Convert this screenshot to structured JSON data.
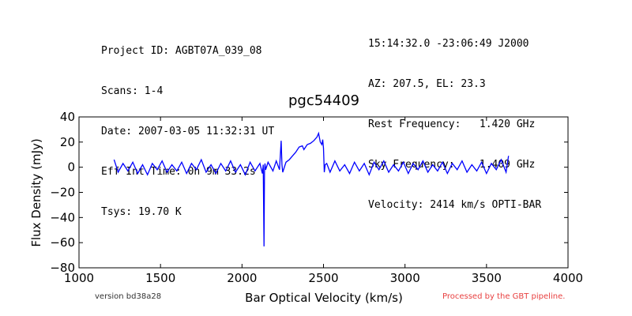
{
  "header_left": [
    "Project ID: AGBT07A_039_08",
    "Scans: 1-4",
    "Date: 2007-03-05 11:32:31 UT",
    "Eff Int Time: 0h 9m 33.2s",
    "Tsys: 19.70 K"
  ],
  "header_right": [
    "15:14:32.0 -23:06:49 J2000",
    "AZ: 207.5, EL: 23.3",
    "Rest Frequency:   1.420 GHz",
    "Sky Frequency:    1.409 GHz",
    "Velocity: 2414 km/s OPTI-BAR"
  ],
  "footer": {
    "version": "version bd38a28",
    "processed": "Processed by the GBT pipeline."
  },
  "colors": {
    "line": "#0000ff",
    "processed_text": "#e84040"
  },
  "chart_data": {
    "type": "line",
    "title": "pgc54409",
    "xlabel": "Bar Optical Velocity (km/s)",
    "ylabel": "Flux Density (mJy)",
    "xlim": [
      1000,
      4000
    ],
    "ylim": [
      -80,
      40
    ],
    "xticks": [
      "1000",
      "1500",
      "2000",
      "2500",
      "3000",
      "3500",
      "4000"
    ],
    "yticks": [
      "40",
      "20",
      "0",
      "−20",
      "−40",
      "−60",
      "−80"
    ],
    "grid": false,
    "series": [
      {
        "x": [
          1215,
          1240,
          1270,
          1300,
          1330,
          1360,
          1390,
          1420,
          1450,
          1480,
          1510,
          1540,
          1570,
          1600,
          1630,
          1660,
          1690,
          1720,
          1750,
          1780,
          1810,
          1840,
          1870,
          1900,
          1930,
          1960,
          1990,
          2020,
          2050,
          2080,
          2110,
          2125,
          2130,
          2135,
          2138,
          2141,
          2145,
          2160,
          2190,
          2210,
          2230,
          2240,
          2245,
          2250,
          2270,
          2290,
          2310,
          2330,
          2350,
          2370,
          2380,
          2400,
          2420,
          2440,
          2460,
          2470,
          2480,
          2490,
          2495,
          2500,
          2505,
          2510,
          2520,
          2540,
          2570,
          2600,
          2630,
          2660,
          2690,
          2720,
          2750,
          2780,
          2810,
          2840,
          2870,
          2900,
          2930,
          2960,
          2990,
          3020,
          3050,
          3080,
          3110,
          3140,
          3170,
          3200,
          3230,
          3260,
          3290,
          3320,
          3350,
          3380,
          3410,
          3440,
          3470,
          3500,
          3530,
          3560,
          3590,
          3620,
          3635
        ],
        "y": [
          6,
          -4,
          3,
          -3,
          4,
          -5,
          2,
          -6,
          3,
          -2,
          5,
          -4,
          2,
          -3,
          4,
          -5,
          3,
          -2,
          6,
          -4,
          2,
          -5,
          3,
          -3,
          5,
          -4,
          2,
          -6,
          4,
          -3,
          3,
          -5,
          2,
          -63,
          -4,
          3,
          -2,
          4,
          -3,
          5,
          -2,
          21,
          2,
          -4,
          4,
          6,
          9,
          12,
          16,
          17,
          14,
          18,
          19,
          21,
          24,
          27,
          20,
          18,
          22,
          15,
          -4,
          2,
          3,
          -4,
          5,
          -3,
          2,
          -5,
          4,
          -3,
          3,
          -6,
          4,
          -2,
          5,
          -4,
          2,
          -3,
          4,
          -5,
          3,
          -2,
          5,
          -4,
          2,
          -3,
          4,
          -5,
          3,
          -2,
          5,
          -4,
          2,
          -3,
          4,
          -5,
          3,
          -2,
          6,
          -4,
          9
        ]
      }
    ]
  }
}
